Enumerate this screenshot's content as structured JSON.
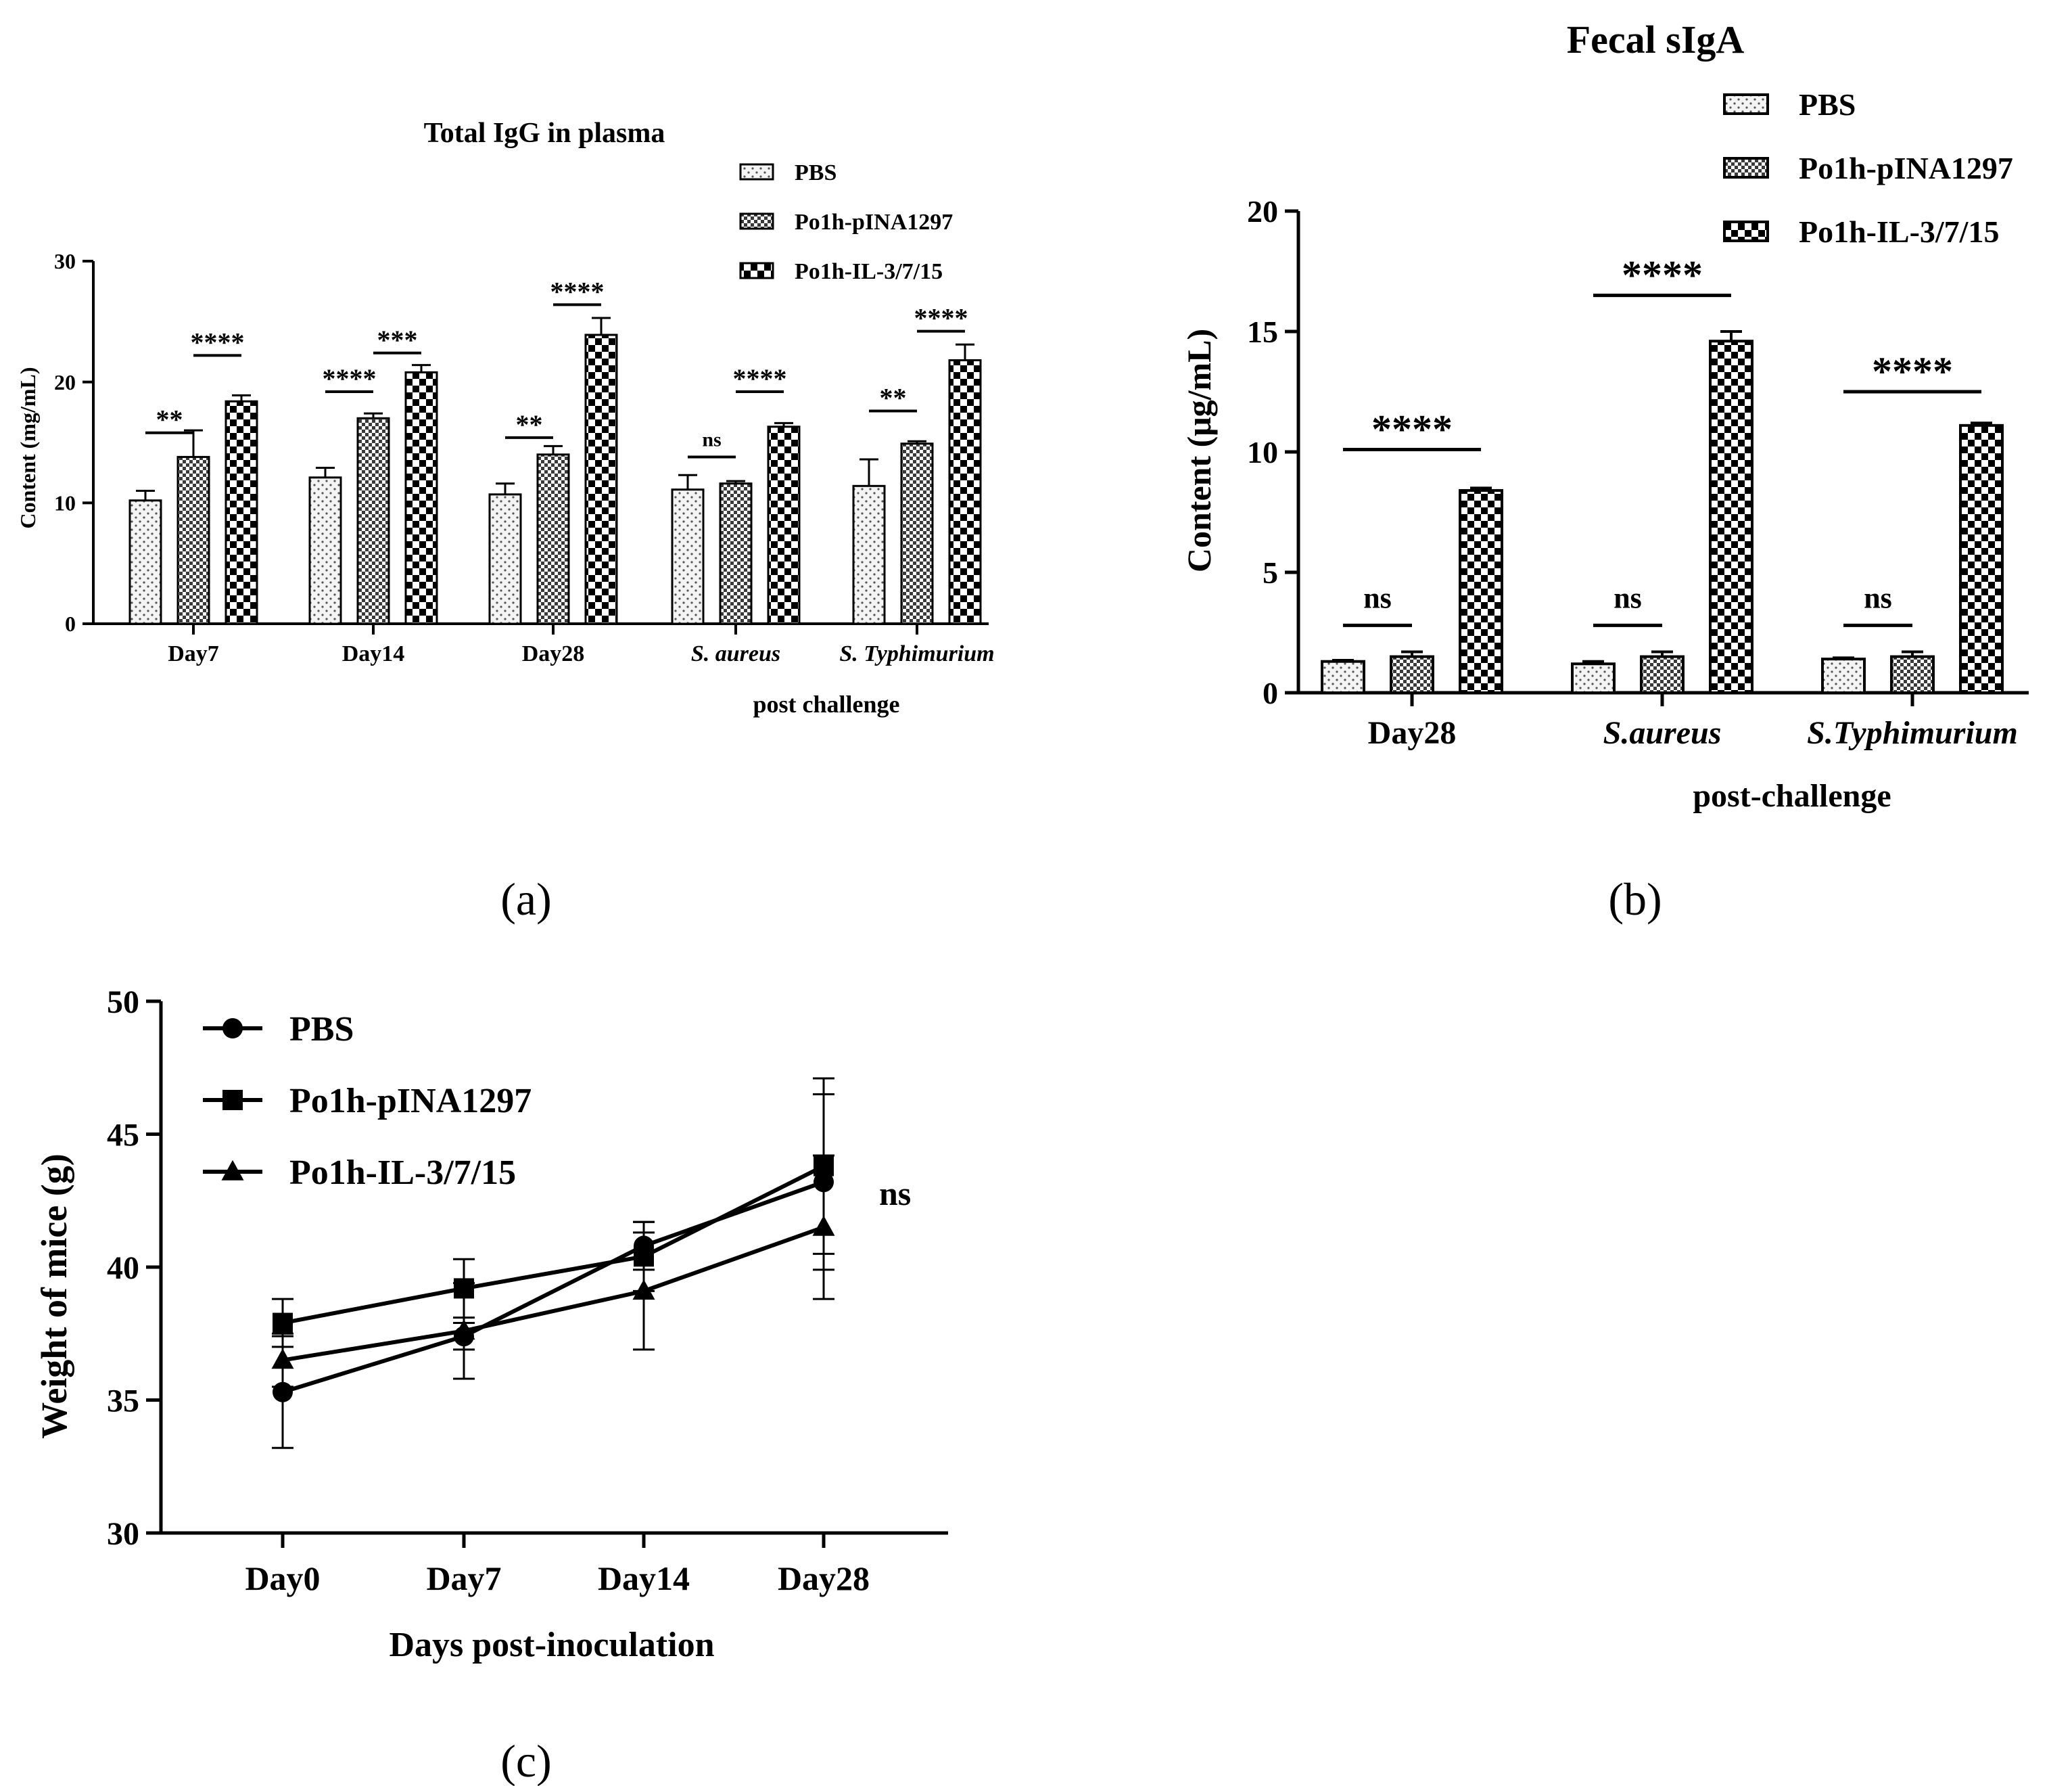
{
  "figure_labels": {
    "a": "(a)",
    "b": "(b)",
    "c": "(c)"
  },
  "colors": {
    "ink": "#000000",
    "pbs_fill": "#f4f4f4",
    "mid_fill": "#707070",
    "il_fill": "#ffffff"
  },
  "chart_data": [
    {
      "id": "a",
      "type": "bar",
      "title": "Total IgG in plasma",
      "xlabel": "post challenge",
      "ylabel": "Content (mg/mL)",
      "ylim": [
        0,
        30
      ],
      "yticks": [
        "0",
        "10",
        "20",
        "30"
      ],
      "categories": [
        "Day7",
        "Day14",
        "Day28",
        "S. aureus",
        "S. Typhimurium"
      ],
      "italic_categories": [
        false,
        false,
        false,
        true,
        true
      ],
      "series": [
        {
          "name": "PBS",
          "values": [
            10.2,
            12.1,
            10.7,
            11.1,
            11.4
          ],
          "errors": [
            0.8,
            0.8,
            0.9,
            1.2,
            2.2
          ]
        },
        {
          "name": "Po1h-pINA1297",
          "values": [
            13.8,
            17.0,
            14.0,
            11.6,
            14.9
          ],
          "errors": [
            2.2,
            0.4,
            0.7,
            0.2,
            0.2
          ]
        },
        {
          "name": "Po1h-IL-3/7/15",
          "values": [
            18.4,
            20.8,
            23.9,
            16.3,
            21.8
          ],
          "errors": [
            0.5,
            0.6,
            1.4,
            0.3,
            1.3
          ]
        }
      ],
      "annotations": [
        {
          "category": 0,
          "from": 0,
          "to": 1,
          "y": 15.8,
          "label": "**"
        },
        {
          "category": 0,
          "from": 1,
          "to": 2,
          "y": 22.2,
          "label": "****"
        },
        {
          "category": 1,
          "from": 0,
          "to": 1,
          "y": 19.2,
          "label": "****"
        },
        {
          "category": 1,
          "from": 1,
          "to": 2,
          "y": 22.4,
          "label": "***"
        },
        {
          "category": 2,
          "from": 0,
          "to": 1,
          "y": 15.4,
          "label": "**"
        },
        {
          "category": 2,
          "from": 1,
          "to": 2,
          "y": 26.4,
          "label": "****"
        },
        {
          "category": 3,
          "from": 0,
          "to": 1,
          "y": 13.8,
          "label": "ns"
        },
        {
          "category": 3,
          "from": 1,
          "to": 2,
          "y": 19.2,
          "label": "****"
        },
        {
          "category": 4,
          "from": 0,
          "to": 1,
          "y": 17.6,
          "label": "**"
        },
        {
          "category": 4,
          "from": 1,
          "to": 2,
          "y": 24.2,
          "label": "****"
        }
      ],
      "legend": [
        "PBS",
        "Po1h-pINA1297",
        "Po1h-IL-3/7/15"
      ],
      "legend_position": "top-right"
    },
    {
      "id": "b",
      "type": "bar",
      "title": "Fecal sIgA",
      "xlabel": "post-challenge",
      "ylabel": "Content (μg/mL)",
      "ylim": [
        0,
        20
      ],
      "yticks": [
        "0",
        "5",
        "10",
        "15",
        "20"
      ],
      "categories": [
        "Day28",
        "S.aureus",
        "S.Typhimurium"
      ],
      "italic_categories": [
        false,
        true,
        true
      ],
      "series": [
        {
          "name": "PBS",
          "values": [
            1.3,
            1.2,
            1.4
          ],
          "errors": [
            0.05,
            0.1,
            0.05
          ]
        },
        {
          "name": "Po1h-pINA1297",
          "values": [
            1.5,
            1.5,
            1.5
          ],
          "errors": [
            0.2,
            0.2,
            0.2
          ]
        },
        {
          "name": "Po1h-IL-3/7/15",
          "values": [
            8.4,
            14.6,
            11.1
          ],
          "errors": [
            0.1,
            0.4,
            0.1
          ]
        }
      ],
      "annotations": [
        {
          "category": 0,
          "from": 0,
          "to": 1,
          "y": 2.8,
          "label": "ns"
        },
        {
          "category": 0,
          "from": 0,
          "to": 2,
          "y": 10.1,
          "label": "****"
        },
        {
          "category": 1,
          "from": 0,
          "to": 1,
          "y": 2.8,
          "label": "ns"
        },
        {
          "category": 1,
          "from": 0,
          "to": 2,
          "y": 16.5,
          "label": "****"
        },
        {
          "category": 2,
          "from": 0,
          "to": 1,
          "y": 2.8,
          "label": "ns"
        },
        {
          "category": 2,
          "from": 0,
          "to": 2,
          "y": 12.5,
          "label": "****"
        }
      ],
      "legend": [
        "PBS",
        "Po1h-pINA1297",
        "Po1h-IL-3/7/15"
      ],
      "legend_position": "top-right"
    },
    {
      "id": "c",
      "type": "line",
      "title": "",
      "xlabel": "Days post-inoculation",
      "ylabel": "Weight of mice (g)",
      "ylim": [
        30,
        50
      ],
      "yticks": [
        "30",
        "35",
        "40",
        "45",
        "50"
      ],
      "categories": [
        "Day0",
        "Day7",
        "Day14",
        "Day28"
      ],
      "series": [
        {
          "name": "PBS",
          "marker": "circle",
          "values": [
            35.3,
            37.4,
            40.8,
            43.2
          ],
          "errors": [
            2.1,
            0.5,
            0.9,
            3.3
          ]
        },
        {
          "name": "Po1h-pINA1297",
          "marker": "square",
          "values": [
            37.9,
            39.2,
            40.4,
            43.8
          ],
          "errors": [
            0.9,
            1.1,
            1.3,
            3.3
          ]
        },
        {
          "name": "Po1h-IL-3/7/15",
          "marker": "triangle",
          "values": [
            36.5,
            37.6,
            39.1,
            41.5
          ],
          "errors": [
            1.0,
            1.8,
            2.2,
            2.7
          ]
        }
      ],
      "annotations": [
        {
          "label": "ns"
        }
      ],
      "legend": [
        "PBS",
        "Po1h-pINA1297",
        "Po1h-IL-3/7/15"
      ],
      "legend_position": "top-left"
    }
  ]
}
